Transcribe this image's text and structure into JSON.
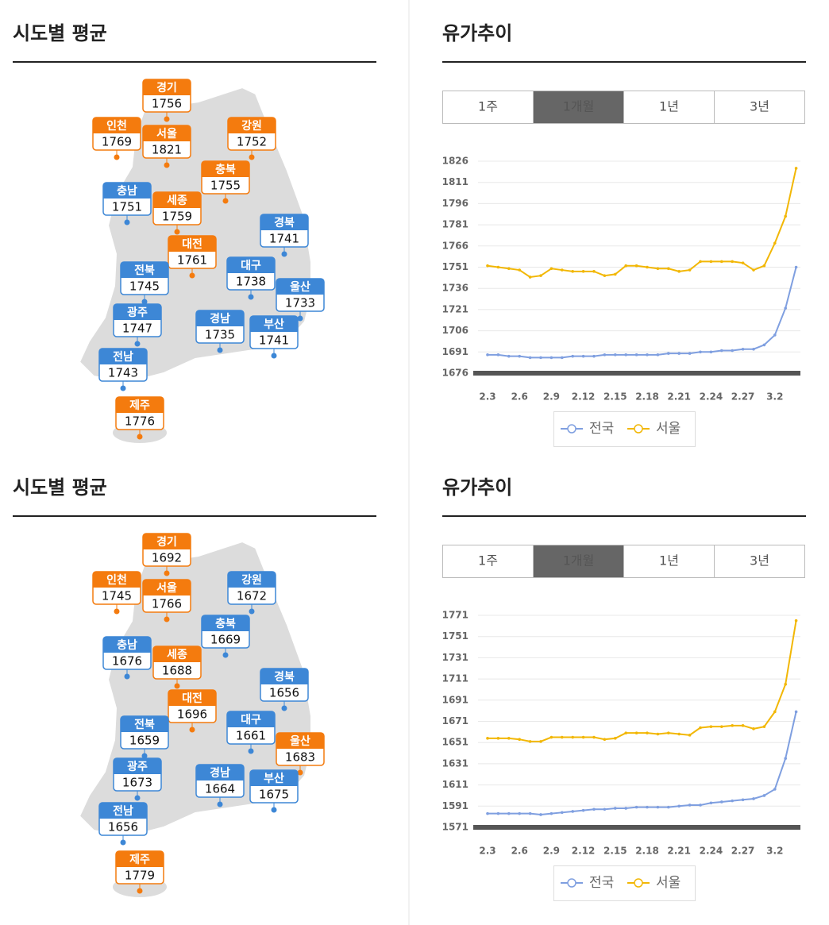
{
  "panels": [
    {
      "map": {
        "title": "시도별 평균",
        "regions": [
          {
            "name": "경기",
            "value": 1756,
            "color": "#f47b0e"
          },
          {
            "name": "인천",
            "value": 1769,
            "color": "#f47b0e"
          },
          {
            "name": "서울",
            "value": 1821,
            "color": "#f47b0e"
          },
          {
            "name": "강원",
            "value": 1752,
            "color": "#f47b0e"
          },
          {
            "name": "충북",
            "value": 1755,
            "color": "#f47b0e"
          },
          {
            "name": "충남",
            "value": 1751,
            "color": "#3d87d6"
          },
          {
            "name": "세종",
            "value": 1759,
            "color": "#f47b0e"
          },
          {
            "name": "경북",
            "value": 1741,
            "color": "#3d87d6"
          },
          {
            "name": "대전",
            "value": 1761,
            "color": "#f47b0e"
          },
          {
            "name": "전북",
            "value": 1745,
            "color": "#3d87d6"
          },
          {
            "name": "대구",
            "value": 1738,
            "color": "#3d87d6"
          },
          {
            "name": "울산",
            "value": 1733,
            "color": "#3d87d6"
          },
          {
            "name": "광주",
            "value": 1747,
            "color": "#3d87d6"
          },
          {
            "name": "경남",
            "value": 1735,
            "color": "#3d87d6"
          },
          {
            "name": "부산",
            "value": 1741,
            "color": "#3d87d6"
          },
          {
            "name": "전남",
            "value": 1743,
            "color": "#3d87d6"
          },
          {
            "name": "제주",
            "value": 1776,
            "color": "#f47b0e"
          }
        ]
      },
      "trend": {
        "title": "유가추이",
        "tabs": [
          "1주",
          "1개월",
          "1년",
          "3년"
        ],
        "active_tab": 1
      }
    },
    {
      "map": {
        "title": "시도별 평균",
        "regions": [
          {
            "name": "경기",
            "value": 1692,
            "color": "#f47b0e"
          },
          {
            "name": "인천",
            "value": 1745,
            "color": "#f47b0e"
          },
          {
            "name": "서울",
            "value": 1766,
            "color": "#f47b0e"
          },
          {
            "name": "강원",
            "value": 1672,
            "color": "#3d87d6"
          },
          {
            "name": "충북",
            "value": 1669,
            "color": "#3d87d6"
          },
          {
            "name": "충남",
            "value": 1676,
            "color": "#3d87d6"
          },
          {
            "name": "세종",
            "value": 1688,
            "color": "#f47b0e"
          },
          {
            "name": "경북",
            "value": 1656,
            "color": "#3d87d6"
          },
          {
            "name": "대전",
            "value": 1696,
            "color": "#f47b0e"
          },
          {
            "name": "전북",
            "value": 1659,
            "color": "#3d87d6"
          },
          {
            "name": "대구",
            "value": 1661,
            "color": "#3d87d6"
          },
          {
            "name": "울산",
            "value": 1683,
            "color": "#f47b0e"
          },
          {
            "name": "광주",
            "value": 1673,
            "color": "#3d87d6"
          },
          {
            "name": "경남",
            "value": 1664,
            "color": "#3d87d6"
          },
          {
            "name": "부산",
            "value": 1675,
            "color": "#3d87d6"
          },
          {
            "name": "전남",
            "value": 1656,
            "color": "#3d87d6"
          },
          {
            "name": "제주",
            "value": 1779,
            "color": "#f47b0e"
          }
        ]
      },
      "trend": {
        "title": "유가추이",
        "tabs": [
          "1주",
          "1개월",
          "1년",
          "3년"
        ],
        "active_tab": 1
      }
    }
  ],
  "chart_data": [
    {
      "type": "line",
      "grid": true,
      "categories": [
        "2.3",
        null,
        null,
        "2.6",
        null,
        null,
        "2.9",
        null,
        null,
        "2.12",
        null,
        null,
        "2.15",
        null,
        null,
        "2.18",
        null,
        null,
        "2.21",
        null,
        null,
        "2.24",
        null,
        null,
        "2.27",
        null,
        null,
        "3.2",
        null,
        null
      ],
      "series": [
        {
          "name": "전국",
          "color": "#7f9fe0",
          "values": [
            1689,
            1689,
            1688,
            1688,
            1687,
            1687,
            1687,
            1687,
            1688,
            1688,
            1688,
            1689,
            1689,
            1689,
            1689,
            1689,
            1689,
            1690,
            1690,
            1690,
            1691,
            1691,
            1692,
            1692,
            1693,
            1693,
            1696,
            1703,
            1722,
            1751
          ]
        },
        {
          "name": "서울",
          "color": "#f2b705",
          "values": [
            1752,
            1751,
            1750,
            1749,
            1744,
            1745,
            1750,
            1749,
            1748,
            1748,
            1748,
            1745,
            1746,
            1752,
            1752,
            1751,
            1750,
            1750,
            1748,
            1749,
            1755,
            1755,
            1755,
            1755,
            1754,
            1749,
            1752,
            1768,
            1787,
            1821
          ]
        }
      ],
      "ylim": [
        1676,
        1826
      ],
      "yticks": [
        1676,
        1691,
        1706,
        1721,
        1736,
        1751,
        1766,
        1781,
        1796,
        1811,
        1826
      ]
    },
    {
      "type": "line",
      "grid": true,
      "categories": [
        "2.3",
        null,
        null,
        "2.6",
        null,
        null,
        "2.9",
        null,
        null,
        "2.12",
        null,
        null,
        "2.15",
        null,
        null,
        "2.18",
        null,
        null,
        "2.21",
        null,
        null,
        "2.24",
        null,
        null,
        "2.27",
        null,
        null,
        "3.2",
        null,
        null
      ],
      "series": [
        {
          "name": "전국",
          "color": "#7f9fe0",
          "values": [
            1584,
            1584,
            1584,
            1584,
            1584,
            1583,
            1584,
            1585,
            1586,
            1587,
            1588,
            1588,
            1589,
            1589,
            1590,
            1590,
            1590,
            1590,
            1591,
            1592,
            1592,
            1594,
            1595,
            1596,
            1597,
            1598,
            1601,
            1607,
            1636,
            1680
          ]
        },
        {
          "name": "서울",
          "color": "#f2b705",
          "values": [
            1655,
            1655,
            1655,
            1654,
            1652,
            1652,
            1656,
            1656,
            1656,
            1656,
            1656,
            1654,
            1655,
            1660,
            1660,
            1660,
            1659,
            1660,
            1659,
            1658,
            1665,
            1666,
            1666,
            1667,
            1667,
            1664,
            1666,
            1680,
            1706,
            1766
          ]
        }
      ],
      "ylim": [
        1571,
        1771
      ],
      "yticks": [
        1571,
        1591,
        1611,
        1631,
        1651,
        1671,
        1691,
        1711,
        1731,
        1751,
        1771
      ]
    }
  ]
}
